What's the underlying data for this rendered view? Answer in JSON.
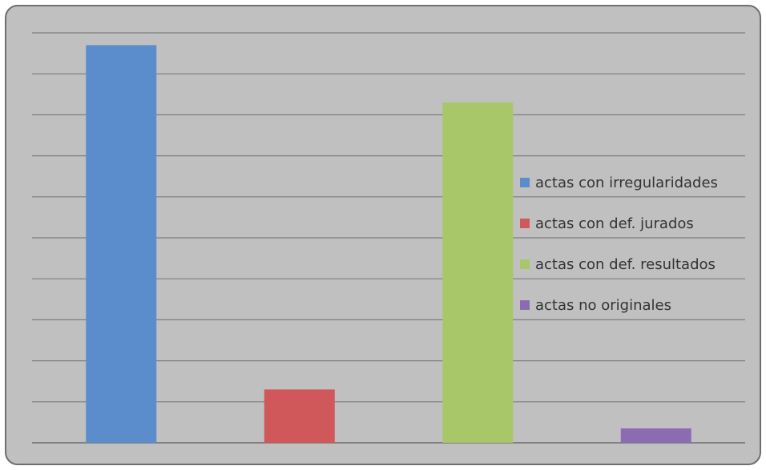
{
  "chart_data": {
    "type": "bar",
    "title": "",
    "xlabel": "",
    "ylabel": "",
    "ylim": [
      0,
      10
    ],
    "grid": true,
    "legend_position": "right",
    "categories": [
      "actas con irregularidades",
      "actas con def. jurados",
      "actas con def. resultados",
      "actas no originales"
    ],
    "values": [
      9.7,
      1.3,
      8.3,
      0.35
    ],
    "colors": [
      "#5b8dcc",
      "#d0575a",
      "#a7c768",
      "#8b6cb2"
    ],
    "legend": [
      "actas con irregularidades",
      "actas con def. jurados",
      "actas con def. resultados",
      "actas no originales"
    ]
  }
}
